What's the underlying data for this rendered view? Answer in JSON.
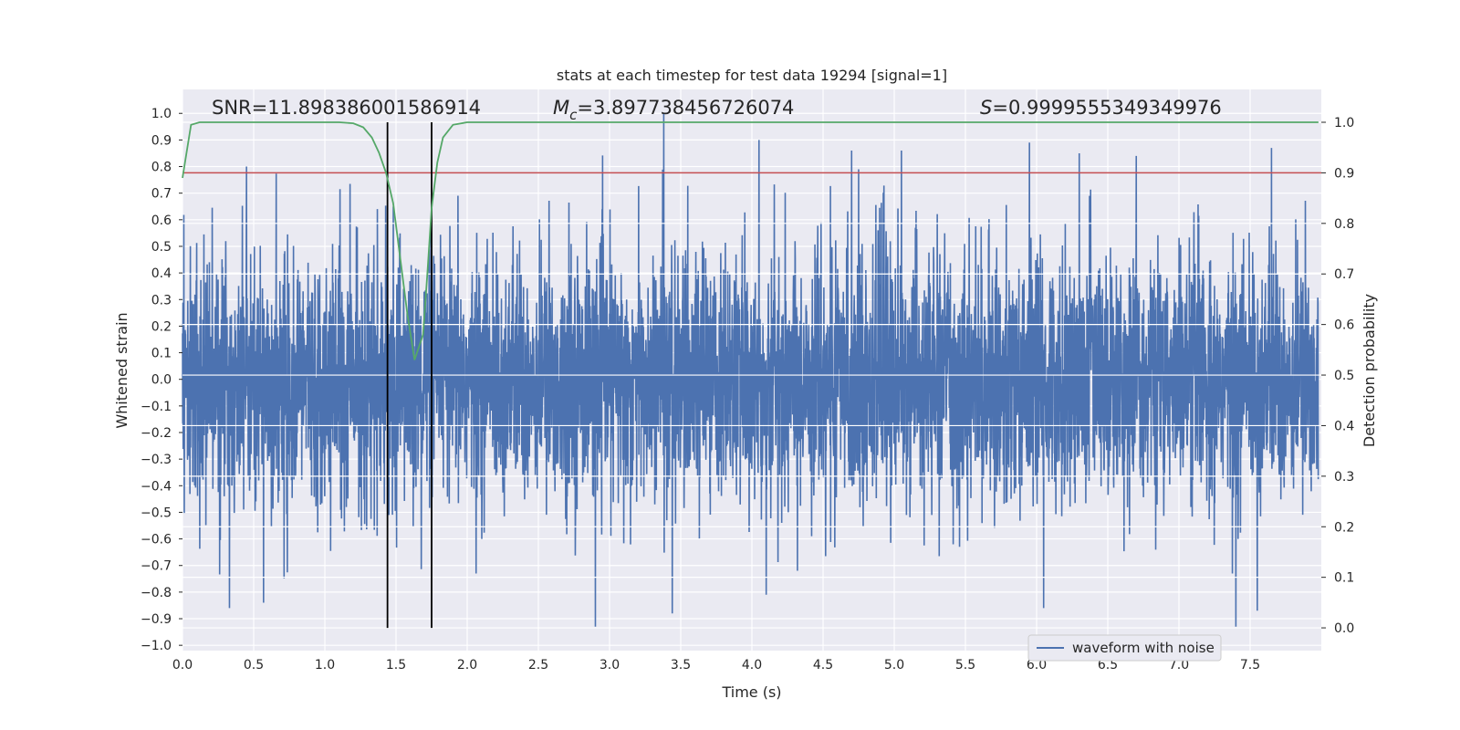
{
  "chart_data": {
    "type": "line",
    "title": "stats at each timestep for test data 19294 [signal=1]",
    "xlabel": "Time (s)",
    "ylabel": "Whitened strain",
    "y2label": "Detection probability",
    "xlim": [
      0.0,
      8.0
    ],
    "ylim": [
      -1.02,
      1.09
    ],
    "y2lim": [
      -0.045,
      1.065
    ],
    "x_ticks": [
      0.0,
      0.5,
      1.0,
      1.5,
      2.0,
      2.5,
      3.0,
      3.5,
      4.0,
      4.5,
      5.0,
      5.5,
      6.0,
      6.5,
      7.0,
      7.5
    ],
    "x_tick_labels": [
      "0.0",
      "0.5",
      "1.0",
      "1.5",
      "2.0",
      "2.5",
      "3.0",
      "3.5",
      "4.0",
      "4.5",
      "5.0",
      "5.5",
      "6.0",
      "6.5",
      "7.0",
      "7.5"
    ],
    "y_ticks": [
      -1.0,
      -0.9,
      -0.8,
      -0.7,
      -0.6,
      -0.5,
      -0.4,
      -0.3,
      -0.2,
      -0.1,
      0.0,
      0.1,
      0.2,
      0.3,
      0.4,
      0.5,
      0.6,
      0.7,
      0.8,
      0.9,
      1.0
    ],
    "y_tick_labels": [
      "−1.0",
      "−0.9",
      "−0.8",
      "−0.7",
      "−0.6",
      "−0.5",
      "−0.4",
      "−0.3",
      "−0.2",
      "−0.1",
      "0.0",
      "0.1",
      "0.2",
      "0.3",
      "0.4",
      "0.5",
      "0.6",
      "0.7",
      "0.8",
      "0.9",
      "1.0"
    ],
    "y2_ticks": [
      0.0,
      0.1,
      0.2,
      0.3,
      0.4,
      0.5,
      0.6,
      0.7,
      0.8,
      0.9,
      1.0
    ],
    "y2_tick_labels": [
      "0.0",
      "0.1",
      "0.2",
      "0.3",
      "0.4",
      "0.5",
      "0.6",
      "0.7",
      "0.8",
      "0.9",
      "1.0"
    ],
    "grid": true,
    "annotations": {
      "snr": "SNR=11.898386001586914",
      "mc_symbol": "M",
      "mc_subscript": "c",
      "mc_value": "=3.897738456726074",
      "s_symbol": "S",
      "s_value": "=0.9999555349349976"
    },
    "legend": {
      "placement": "lower-right",
      "entries": [
        "waveform with noise"
      ]
    },
    "waveform": {
      "name": "waveform with noise",
      "color": "#4c72b0",
      "min": -0.93,
      "max": 1.0,
      "typical_amplitude": 0.22,
      "spikes": [
        [
          0.45,
          0.8
        ],
        [
          0.33,
          -0.86
        ],
        [
          0.57,
          -0.84
        ],
        [
          1.45,
          -0.51
        ],
        [
          1.75,
          -0.68
        ],
        [
          2.9,
          -0.93
        ],
        [
          3.38,
          1.0
        ],
        [
          3.44,
          -0.88
        ],
        [
          4.05,
          0.9
        ],
        [
          4.1,
          -0.81
        ],
        [
          4.7,
          0.86
        ],
        [
          5.05,
          0.86
        ],
        [
          5.95,
          0.89
        ],
        [
          6.05,
          -0.86
        ],
        [
          6.3,
          0.85
        ],
        [
          7.4,
          -0.93
        ],
        [
          7.55,
          -0.87
        ],
        [
          7.65,
          0.87
        ],
        [
          4.75,
          0.79
        ],
        [
          6.7,
          0.84
        ]
      ]
    },
    "threshold": {
      "value": 0.9,
      "color": "#c44e52"
    },
    "vlines": {
      "x": [
        1.44,
        1.75
      ],
      "y2_range": [
        0.0,
        1.0
      ],
      "color": "#000000"
    },
    "probability": {
      "color": "#55a868",
      "x": [
        0.0,
        0.06,
        0.12,
        0.2,
        0.4,
        0.6,
        0.8,
        1.0,
        1.1,
        1.2,
        1.27,
        1.33,
        1.38,
        1.43,
        1.48,
        1.53,
        1.58,
        1.63,
        1.69,
        1.72,
        1.75,
        1.79,
        1.83,
        1.9,
        2.0,
        2.5,
        3.0,
        4.0,
        5.0,
        6.0,
        7.0,
        7.98
      ],
      "y": [
        0.89,
        0.995,
        1.0,
        1.0,
        1.0,
        1.0,
        1.0,
        1.0,
        1.0,
        0.998,
        0.99,
        0.97,
        0.94,
        0.9,
        0.84,
        0.73,
        0.62,
        0.53,
        0.58,
        0.7,
        0.83,
        0.92,
        0.97,
        0.995,
        1.0,
        1.0,
        1.0,
        1.0,
        1.0,
        1.0,
        1.0,
        1.0
      ]
    }
  }
}
